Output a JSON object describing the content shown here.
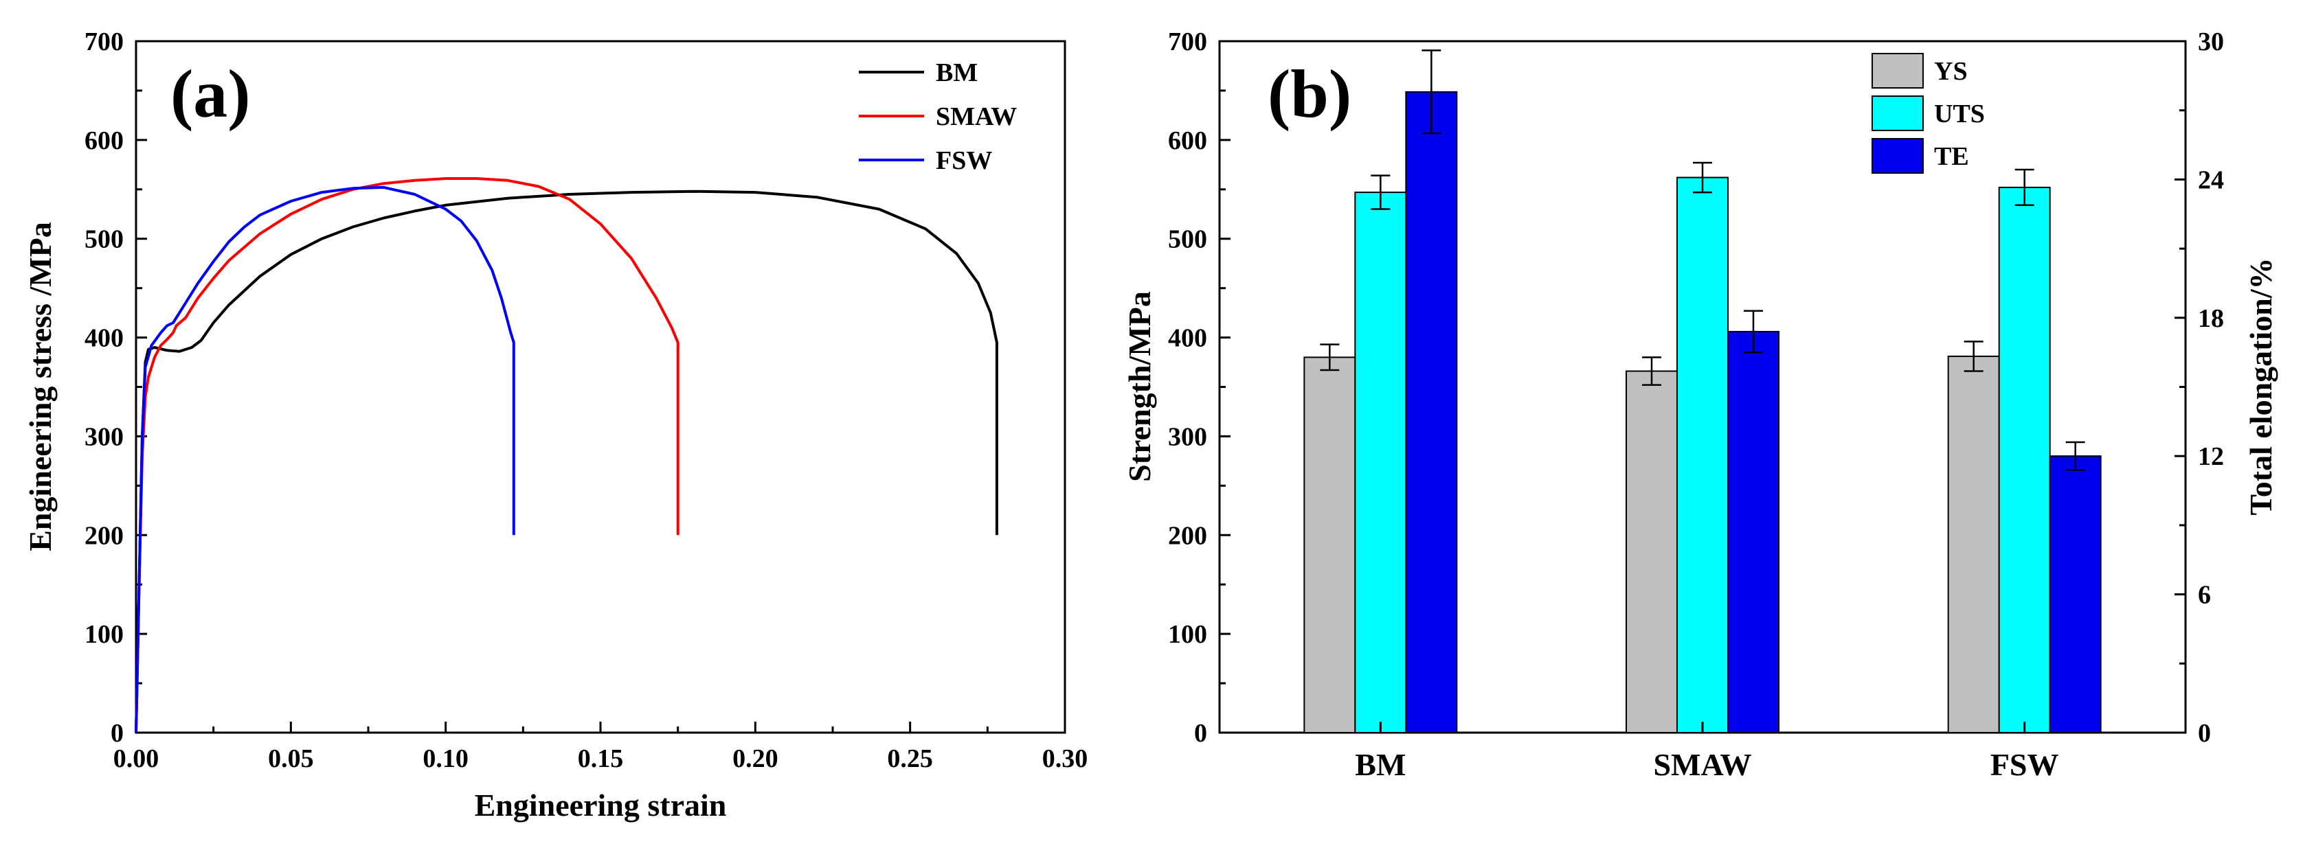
{
  "chart_data": [
    {
      "panel": "(a)",
      "type": "line",
      "title": "",
      "xlabel": "Engineering strain",
      "ylabel": "Engineering stress /MPa",
      "xlim": [
        0,
        0.3
      ],
      "ylim": [
        0,
        700
      ],
      "xticks": [
        "0.00",
        "0.05",
        "0.10",
        "0.15",
        "0.20",
        "0.25",
        "0.30"
      ],
      "yticks": [
        "0",
        "100",
        "200",
        "300",
        "400",
        "500",
        "600",
        "700"
      ],
      "legend_position": "top-right",
      "series": [
        {
          "name": "BM",
          "color": "#000000",
          "points": [
            [
              0,
              0
            ],
            [
              0.001,
              150
            ],
            [
              0.002,
              300
            ],
            [
              0.003,
              375
            ],
            [
              0.004,
              388
            ],
            [
              0.006,
              390
            ],
            [
              0.01,
              387
            ],
            [
              0.014,
              386
            ],
            [
              0.018,
              390
            ],
            [
              0.021,
              397
            ],
            [
              0.025,
              415
            ],
            [
              0.03,
              433
            ],
            [
              0.04,
              462
            ],
            [
              0.05,
              484
            ],
            [
              0.06,
              500
            ],
            [
              0.07,
              512
            ],
            [
              0.08,
              521
            ],
            [
              0.09,
              528
            ],
            [
              0.1,
              534
            ],
            [
              0.12,
              541
            ],
            [
              0.14,
              545
            ],
            [
              0.16,
              547
            ],
            [
              0.18,
              548
            ],
            [
              0.2,
              547
            ],
            [
              0.22,
              542
            ],
            [
              0.24,
              530
            ],
            [
              0.255,
              510
            ],
            [
              0.265,
              485
            ],
            [
              0.272,
              455
            ],
            [
              0.276,
              425
            ],
            [
              0.278,
              395
            ],
            [
              0.278,
              200
            ]
          ]
        },
        {
          "name": "SMAW",
          "color": "#ff0000",
          "points": [
            [
              0,
              0
            ],
            [
              0.001,
              150
            ],
            [
              0.002,
              280
            ],
            [
              0.003,
              340
            ],
            [
              0.004,
              360
            ],
            [
              0.006,
              380
            ],
            [
              0.008,
              392
            ],
            [
              0.01,
              398
            ],
            [
              0.012,
              405
            ],
            [
              0.013,
              412
            ],
            [
              0.016,
              420
            ],
            [
              0.02,
              440
            ],
            [
              0.025,
              460
            ],
            [
              0.03,
              478
            ],
            [
              0.04,
              505
            ],
            [
              0.05,
              525
            ],
            [
              0.06,
              540
            ],
            [
              0.07,
              550
            ],
            [
              0.08,
              556
            ],
            [
              0.09,
              559
            ],
            [
              0.1,
              561
            ],
            [
              0.11,
              561
            ],
            [
              0.12,
              559
            ],
            [
              0.13,
              553
            ],
            [
              0.14,
              540
            ],
            [
              0.15,
              515
            ],
            [
              0.16,
              480
            ],
            [
              0.168,
              440
            ],
            [
              0.173,
              410
            ],
            [
              0.175,
              395
            ],
            [
              0.175,
              200
            ]
          ]
        },
        {
          "name": "FSW",
          "color": "#0000ff",
          "points": [
            [
              0,
              0
            ],
            [
              0.001,
              150
            ],
            [
              0.002,
              300
            ],
            [
              0.003,
              370
            ],
            [
              0.005,
              392
            ],
            [
              0.008,
              405
            ],
            [
              0.01,
              412
            ],
            [
              0.012,
              415
            ],
            [
              0.014,
              425
            ],
            [
              0.017,
              440
            ],
            [
              0.02,
              455
            ],
            [
              0.025,
              477
            ],
            [
              0.03,
              497
            ],
            [
              0.035,
              512
            ],
            [
              0.04,
              524
            ],
            [
              0.05,
              538
            ],
            [
              0.06,
              547
            ],
            [
              0.07,
              551
            ],
            [
              0.08,
              552
            ],
            [
              0.09,
              545
            ],
            [
              0.1,
              530
            ],
            [
              0.105,
              518
            ],
            [
              0.11,
              498
            ],
            [
              0.115,
              468
            ],
            [
              0.118,
              440
            ],
            [
              0.121,
              405
            ],
            [
              0.122,
              395
            ],
            [
              0.122,
              200
            ]
          ]
        }
      ]
    },
    {
      "panel": "(b)",
      "type": "bar",
      "title": "",
      "categories": [
        "BM",
        "SMAW",
        "FSW"
      ],
      "ylabel": "Strength/MPa",
      "y2label": "Total elongation/%",
      "ylim": [
        0,
        700
      ],
      "y2lim": [
        0,
        30
      ],
      "yticks": [
        "0",
        "100",
        "200",
        "300",
        "400",
        "500",
        "600",
        "700"
      ],
      "y2ticks": [
        "0",
        "6",
        "12",
        "18",
        "24",
        "30"
      ],
      "legend_position": "top-right",
      "series": [
        {
          "name": "YS",
          "axis": "left",
          "color": "#c0c0c0",
          "values": [
            380,
            366,
            381
          ],
          "errors": [
            13,
            14,
            15
          ]
        },
        {
          "name": "UTS",
          "axis": "left",
          "color": "#00ffff",
          "values": [
            547,
            562,
            552
          ],
          "errors": [
            17,
            15,
            18
          ]
        },
        {
          "name": "TE",
          "axis": "right",
          "color": "#0000ee",
          "values": [
            27.8,
            17.4,
            12.0
          ],
          "errors": [
            1.8,
            0.9,
            0.6
          ]
        }
      ]
    }
  ]
}
